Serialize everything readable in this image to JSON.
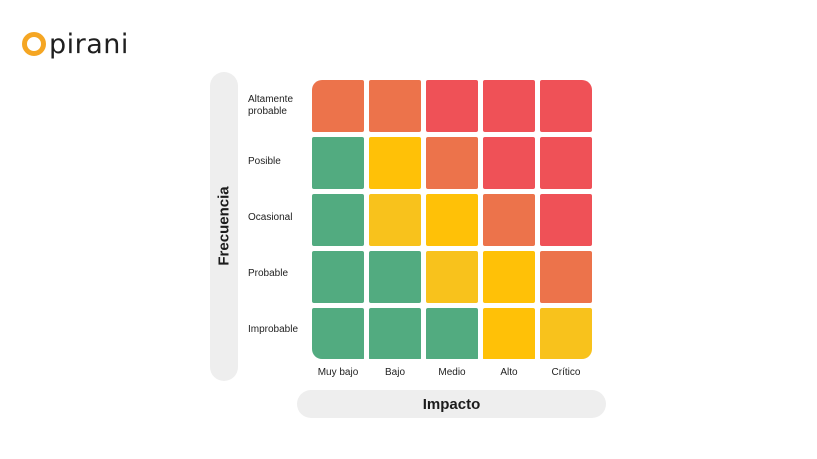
{
  "logo": {
    "text": "pirani"
  },
  "axes": {
    "y_label": "Frecuencia",
    "x_label": "Impacto"
  },
  "rows": [
    {
      "label": "Altamente probable"
    },
    {
      "label": "Posible"
    },
    {
      "label": "Ocasional"
    },
    {
      "label": "Probable"
    },
    {
      "label": "Improbable"
    }
  ],
  "columns": [
    {
      "label": "Muy bajo"
    },
    {
      "label": "Bajo"
    },
    {
      "label": "Medio"
    },
    {
      "label": "Alto"
    },
    {
      "label": "Crítico"
    }
  ],
  "colors": {
    "green": "#52ab80",
    "yellow": "#ffc107",
    "yellow_alt": "#f8c21c",
    "orange": "#ec734b",
    "red": "#ef5157",
    "logo_accent": "#f5a623",
    "pill_bg": "#eeeeee"
  },
  "matrix": [
    [
      "orange",
      "orange",
      "red",
      "red",
      "red"
    ],
    [
      "green",
      "yellow",
      "orange",
      "red",
      "red"
    ],
    [
      "green",
      "yellow_alt",
      "yellow",
      "orange",
      "red"
    ],
    [
      "green",
      "green",
      "yellow_alt",
      "yellow",
      "orange"
    ],
    [
      "green",
      "green",
      "green",
      "yellow",
      "yellow_alt"
    ]
  ]
}
